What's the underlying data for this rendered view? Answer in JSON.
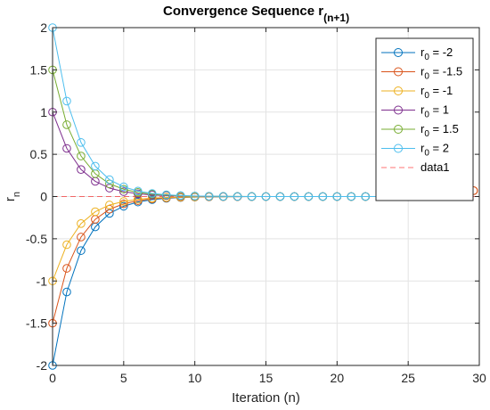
{
  "chart_data": {
    "type": "line",
    "title": {
      "main": "Convergence Sequence r",
      "subscript": "(n+1)"
    },
    "xlabel": "Iteration (n)",
    "ylabel": {
      "main": "r",
      "subscript": "n"
    },
    "xlim": [
      0,
      30
    ],
    "ylim": [
      -2,
      2
    ],
    "xticks": [
      0,
      5,
      10,
      15,
      20,
      25,
      30
    ],
    "yticks": [
      -2,
      -1.5,
      -1,
      -0.5,
      0,
      0.5,
      1,
      1.5,
      2
    ],
    "xtick_labels": [
      "0",
      "5",
      "10",
      "15",
      "20",
      "25",
      "30"
    ],
    "ytick_labels": [
      "-2",
      "-1.5",
      "-1",
      "-0.5",
      "0",
      "0.5",
      "1",
      "1.5",
      "2"
    ],
    "grid": true,
    "legend_placement": "top-right",
    "x": [
      0,
      1,
      2,
      3,
      4,
      5,
      6,
      7,
      8,
      9,
      10,
      11,
      12,
      13,
      14,
      15,
      16,
      17,
      18,
      19,
      20,
      21,
      22,
      23,
      24,
      25,
      26,
      27,
      28,
      29
    ],
    "series": [
      {
        "name": "r_0 = -2",
        "label_main": "r",
        "label_sub": "0",
        "label_tail": " = -2",
        "color": "#0072BD",
        "values": [
          -2,
          -1.13,
          -0.64,
          -0.36,
          -0.2,
          -0.115,
          -0.065,
          -0.037,
          -0.021,
          -0.012,
          -0.0066,
          -0.0037,
          -0.0021,
          -0.0012,
          -0.00068,
          0,
          0,
          0,
          0,
          0,
          0,
          0,
          0,
          0,
          0,
          0,
          0,
          0,
          0,
          0
        ]
      },
      {
        "name": "r_0 = -1.5",
        "label_main": "r",
        "label_sub": "0",
        "label_tail": " = -1.5",
        "color": "#D95319",
        "values": [
          -1.5,
          -0.85,
          -0.48,
          -0.27,
          -0.15,
          -0.087,
          -0.049,
          -0.028,
          -0.016,
          -0.0089,
          -0.005,
          -0.0028,
          -0.0016,
          -0.0009,
          -0.0005,
          0,
          0,
          0,
          0,
          0,
          0,
          0,
          0,
          0,
          0,
          0,
          0,
          0,
          0,
          0
        ]
      },
      {
        "name": "r_0 = -1",
        "label_main": "r",
        "label_sub": "0",
        "label_tail": " = -1",
        "color": "#EDB120",
        "values": [
          -1,
          -0.57,
          -0.32,
          -0.18,
          -0.1,
          -0.058,
          -0.033,
          -0.019,
          -0.011,
          -0.006,
          -0.0034,
          -0.0019,
          -0.0011,
          -0.0006,
          -0.00034,
          0,
          0,
          0,
          0,
          0,
          0,
          0,
          0,
          0,
          0,
          0,
          0,
          0,
          0,
          0
        ]
      },
      {
        "name": "r_0 = 1",
        "label_main": "r",
        "label_sub": "0",
        "label_tail": " = 1",
        "color": "#7E2F8E",
        "values": [
          1,
          0.57,
          0.32,
          0.18,
          0.1,
          0.058,
          0.033,
          0.019,
          0.011,
          0.006,
          0.0034,
          0.0019,
          0.0011,
          0.0006,
          0.00034,
          0,
          0,
          0,
          0,
          0,
          0,
          0,
          0,
          0,
          0,
          0,
          0,
          0,
          0,
          0
        ]
      },
      {
        "name": "r_0 = 1.5",
        "label_main": "r",
        "label_sub": "0",
        "label_tail": " = 1.5",
        "color": "#77AC30",
        "values": [
          1.5,
          0.85,
          0.48,
          0.27,
          0.15,
          0.087,
          0.049,
          0.028,
          0.016,
          0.0089,
          0.005,
          0.0028,
          0.0016,
          0.0009,
          0.0005,
          0,
          0,
          0,
          0,
          0,
          0,
          0,
          0,
          0,
          0,
          0,
          0,
          0,
          0,
          0
        ]
      },
      {
        "name": "r_0 = 2",
        "label_main": "r",
        "label_sub": "0",
        "label_tail": " = 2",
        "color": "#4DBEEE",
        "values": [
          2,
          1.13,
          0.64,
          0.36,
          0.2,
          0.115,
          0.065,
          0.037,
          0.021,
          0.012,
          0.0066,
          0.0037,
          0.0021,
          0.0012,
          0.00068,
          0,
          0,
          0,
          0,
          0,
          0,
          0,
          0,
          0,
          0,
          0,
          0,
          0,
          0,
          0
        ]
      }
    ],
    "reference_line": {
      "name": "data1",
      "y": 0,
      "color": "#FF0000",
      "style": "dashed"
    },
    "annotation_marker": {
      "x": 29.6,
      "y": 0.07,
      "color": "#D95319"
    }
  }
}
